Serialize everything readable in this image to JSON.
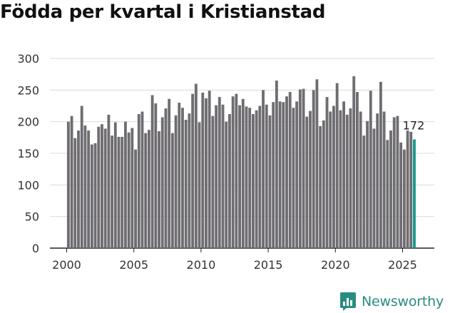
{
  "chart_data": {
    "type": "bar",
    "title": "Födda per kvartal i Kristianstad",
    "xlabel": "",
    "ylabel": "",
    "ylim": [
      0,
      300
    ],
    "yticks": [
      0,
      50,
      100,
      150,
      200,
      250,
      300
    ],
    "xticks": [
      2000,
      2005,
      2010,
      2015,
      2020,
      2025
    ],
    "start": 2000,
    "periods_per_year": 4,
    "values": [
      200,
      209,
      174,
      186,
      225,
      194,
      186,
      164,
      166,
      192,
      196,
      189,
      211,
      178,
      199,
      176,
      176,
      200,
      183,
      190,
      156,
      212,
      216,
      182,
      187,
      242,
      229,
      185,
      207,
      221,
      236,
      182,
      210,
      230,
      222,
      203,
      213,
      244,
      260,
      199,
      246,
      237,
      249,
      209,
      226,
      239,
      227,
      200,
      212,
      240,
      244,
      226,
      236,
      224,
      222,
      212,
      218,
      225,
      250,
      227,
      210,
      231,
      265,
      232,
      231,
      240,
      247,
      222,
      232,
      251,
      252,
      208,
      217,
      250,
      267,
      193,
      202,
      239,
      216,
      225,
      261,
      218,
      232,
      211,
      221,
      272,
      247,
      216,
      178,
      201,
      249,
      189,
      213,
      263,
      216,
      171,
      186,
      207,
      209,
      167,
      156,
      186,
      184,
      172
    ],
    "last_label": "172",
    "bar_color": "#6f6d72",
    "highlight_color": "#1a9a8c"
  },
  "brand": {
    "name": "Newsworthy"
  }
}
